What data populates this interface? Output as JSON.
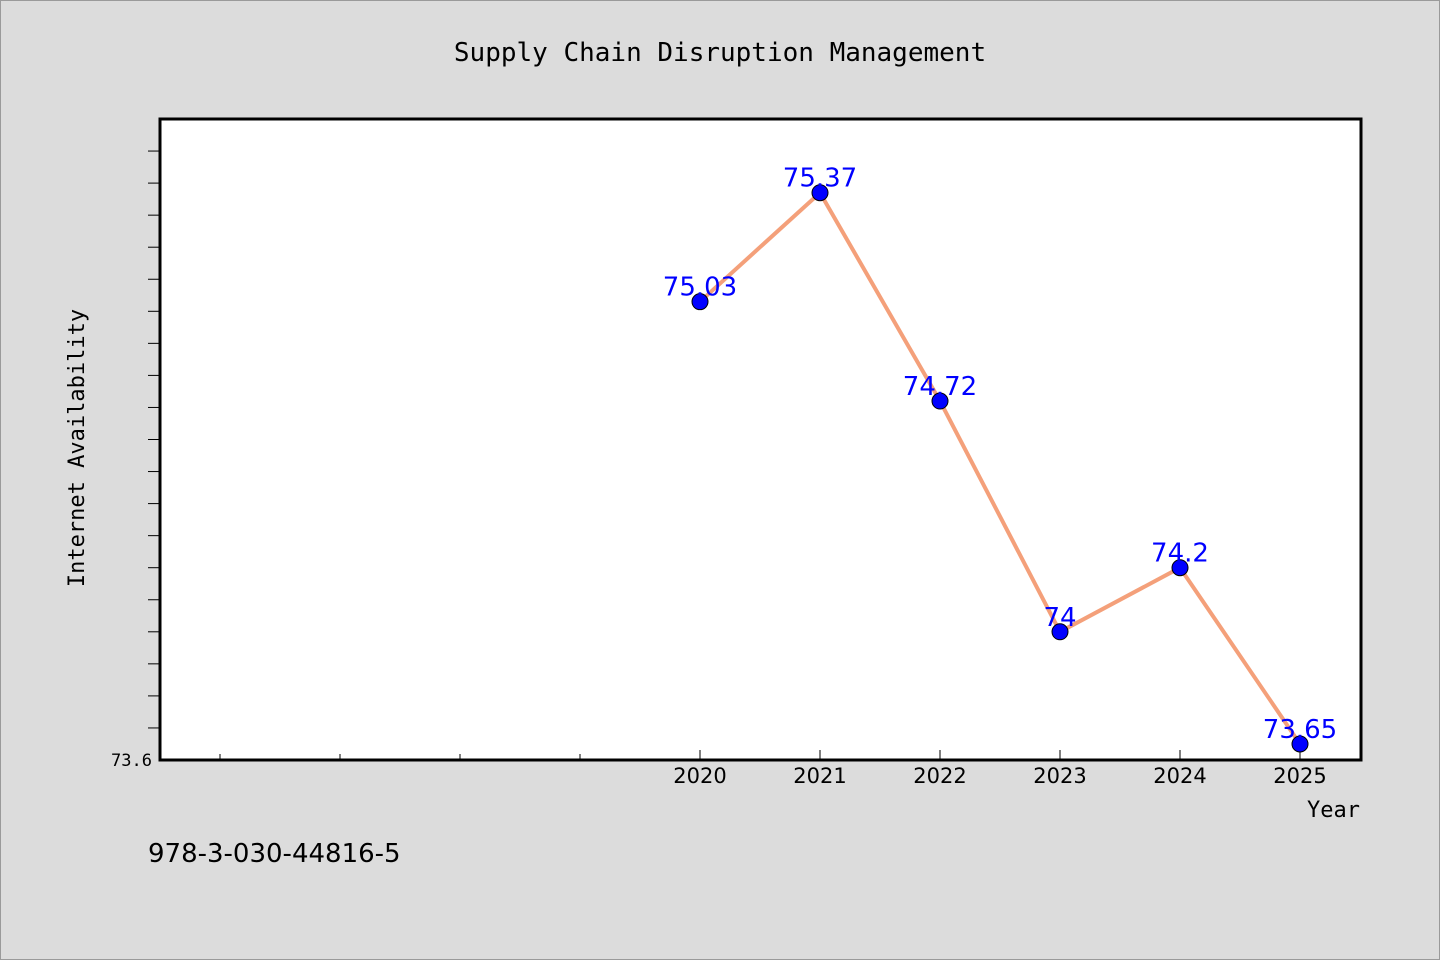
{
  "chart_data": {
    "type": "line",
    "title": "Supply Chain Disruption Management",
    "xlabel": "Year",
    "ylabel": "Internet Availability",
    "x": [
      "2020",
      "2021",
      "2022",
      "2023",
      "2024",
      "2025"
    ],
    "series": [
      {
        "values": [
          75.03,
          75.37,
          74.72,
          74.0,
          74.2,
          73.65
        ],
        "labels": [
          "75.03",
          "75.37",
          "74.72",
          "74",
          "74.2",
          "73.65"
        ]
      }
    ],
    "ylim": [
      73.6,
      75.6
    ],
    "ytick_labels": [
      "73.6"
    ],
    "grid": false,
    "legend": "none",
    "colors": {
      "line": "#f4a07a",
      "marker": "#0000ff",
      "data_label": "#0000ff",
      "plot_background": "#ffffff",
      "figure_background": "#dcdcdc"
    }
  },
  "footer_text": "978-3-030-44816-5"
}
